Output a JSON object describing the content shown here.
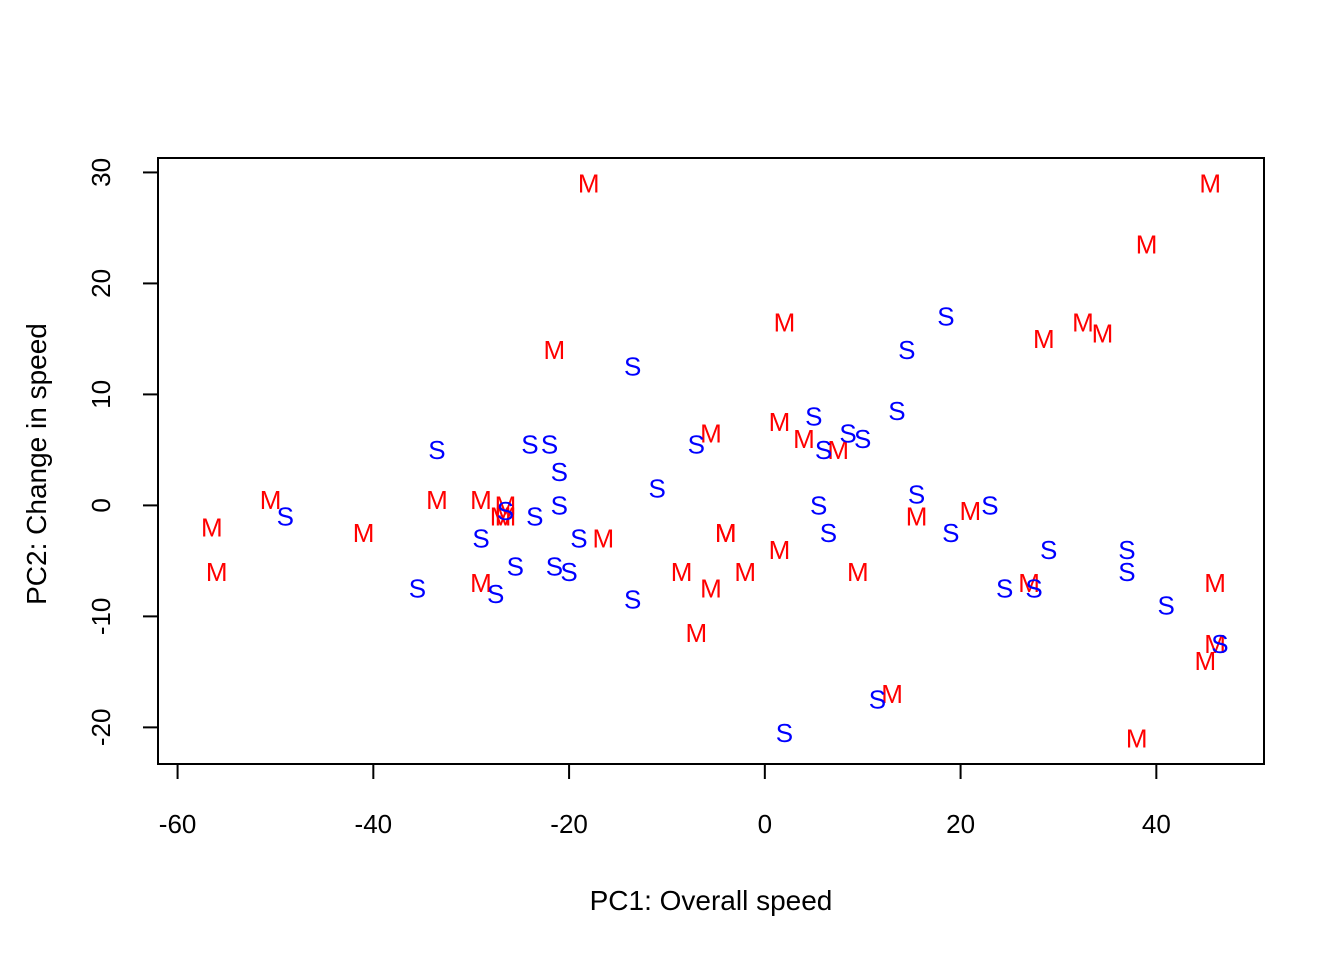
{
  "chart_data": {
    "type": "scatter",
    "title": "",
    "xlabel": "PC1: Overall speed",
    "ylabel": "PC2: Change in speed",
    "xlim": [
      -62,
      51
    ],
    "ylim": [
      -23.3,
      31.3
    ],
    "xticks": [
      -60,
      -40,
      -20,
      0,
      20,
      40
    ],
    "yticks": [
      -20,
      -10,
      0,
      10,
      20,
      30
    ],
    "grid": false,
    "legend": "none",
    "colors": {
      "M": "#ff0000",
      "S": "#0000ff"
    },
    "series": [
      {
        "marker": "M",
        "points": [
          [
            -18,
            29
          ],
          [
            45.5,
            29
          ],
          [
            39,
            23.5
          ],
          [
            -21.5,
            14
          ],
          [
            2,
            16.5
          ],
          [
            28.5,
            15
          ],
          [
            32.5,
            16.5
          ],
          [
            34.5,
            15.5
          ],
          [
            -5.5,
            6.5
          ],
          [
            1.5,
            7.5
          ],
          [
            4,
            6
          ],
          [
            7.5,
            5
          ],
          [
            -50.5,
            0.5
          ],
          [
            -56.5,
            -2
          ],
          [
            -41,
            -2.5
          ],
          [
            -33.5,
            0.5
          ],
          [
            -29,
            0.5
          ],
          [
            -27,
            -1
          ],
          [
            -26.5,
            0
          ],
          [
            -16.5,
            -3
          ],
          [
            -26.5,
            -1
          ],
          [
            -4,
            -2.5
          ],
          [
            -4,
            -2.5
          ],
          [
            15.5,
            -1
          ],
          [
            21,
            -0.5
          ],
          [
            -56,
            -6
          ],
          [
            -29,
            -7
          ],
          [
            -8.5,
            -6
          ],
          [
            -5.5,
            -7.5
          ],
          [
            -2,
            -6
          ],
          [
            1.5,
            -4
          ],
          [
            9.5,
            -6
          ],
          [
            27,
            -7
          ],
          [
            46,
            -7
          ],
          [
            -7,
            -11.5
          ],
          [
            13,
            -17
          ],
          [
            46,
            -12.5
          ],
          [
            45,
            -14
          ],
          [
            38,
            -21
          ]
        ]
      },
      {
        "marker": "S",
        "points": [
          [
            -49,
            -1
          ],
          [
            -33.5,
            5
          ],
          [
            -24,
            5.5
          ],
          [
            -22,
            5.5
          ],
          [
            -21,
            3
          ],
          [
            -21,
            0
          ],
          [
            -23.5,
            -1
          ],
          [
            -26.5,
            -0.5
          ],
          [
            -29,
            -3
          ],
          [
            -19,
            -3
          ],
          [
            -13.5,
            12.5
          ],
          [
            -11,
            1.5
          ],
          [
            -7,
            5.5
          ],
          [
            5,
            8
          ],
          [
            6,
            5
          ],
          [
            8.5,
            6.5
          ],
          [
            10,
            6
          ],
          [
            13.5,
            8.5
          ],
          [
            14.5,
            14
          ],
          [
            18.5,
            17
          ],
          [
            5.5,
            0
          ],
          [
            6.5,
            -2.5
          ],
          [
            15.5,
            1
          ],
          [
            19,
            -2.5
          ],
          [
            23,
            0
          ],
          [
            29,
            -4
          ],
          [
            37,
            -4
          ],
          [
            -35.5,
            -7.5
          ],
          [
            -27.5,
            -8
          ],
          [
            -25.5,
            -5.5
          ],
          [
            -21.5,
            -5.5
          ],
          [
            -20,
            -6
          ],
          [
            -13.5,
            -8.5
          ],
          [
            24.5,
            -7.5
          ],
          [
            27.5,
            -7.5
          ],
          [
            37,
            -6
          ],
          [
            41,
            -9
          ],
          [
            11.5,
            -17.5
          ],
          [
            2,
            -20.5
          ],
          [
            46.5,
            -12.5
          ]
        ]
      }
    ]
  }
}
